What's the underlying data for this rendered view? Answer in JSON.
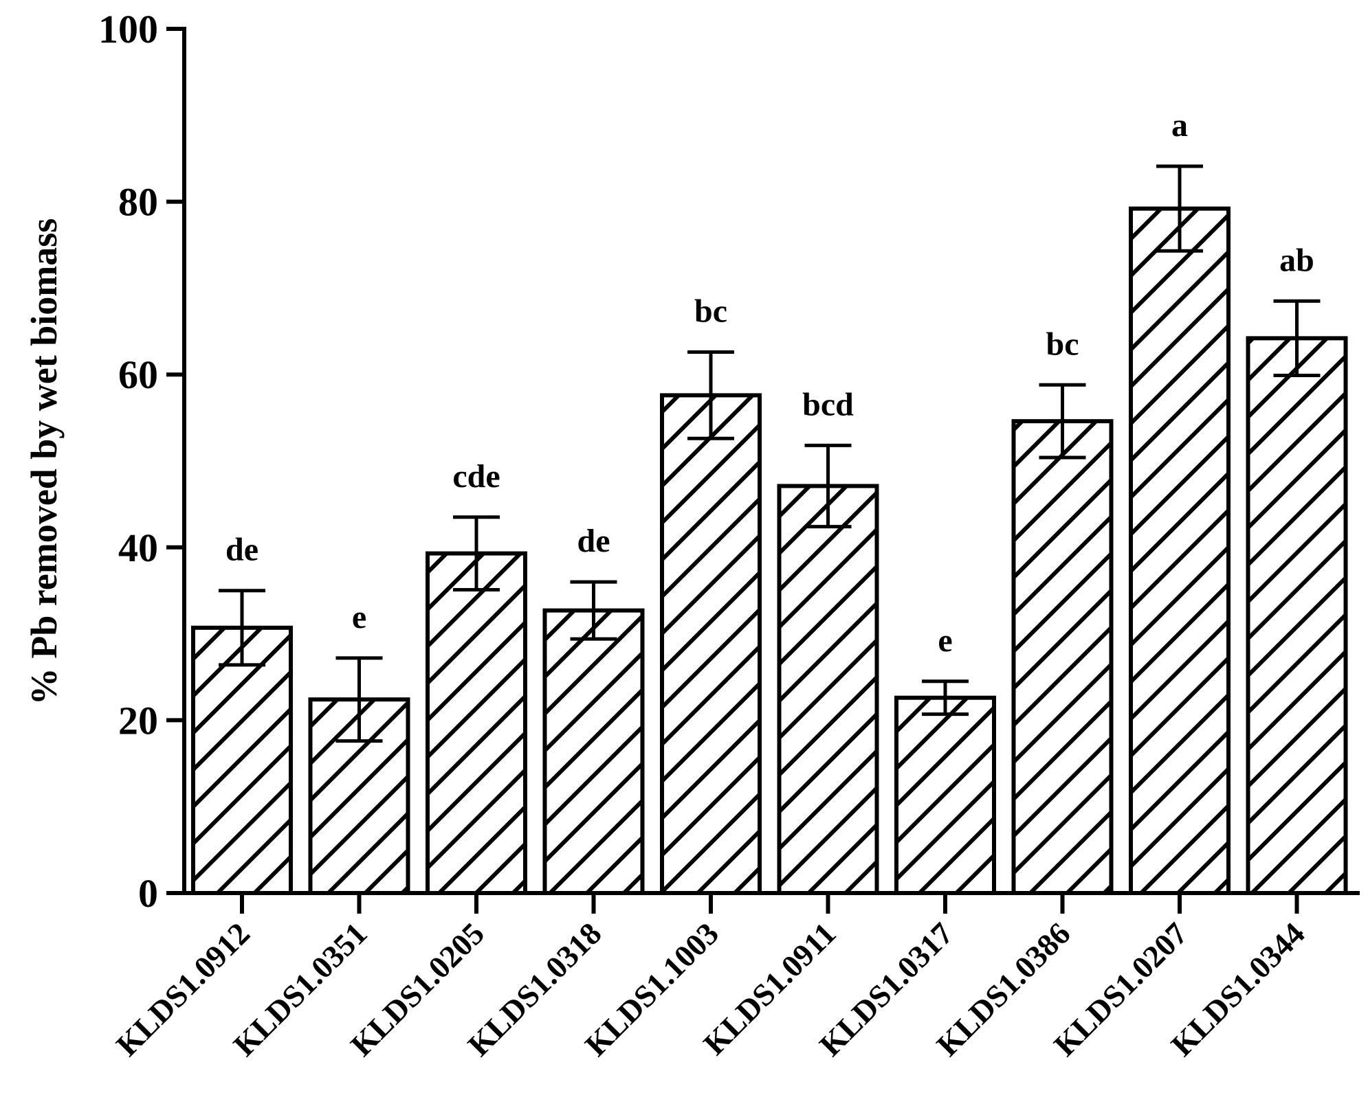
{
  "chart_data": {
    "type": "bar",
    "title": "",
    "xlabel": "",
    "ylabel": "% Pb removed by wet biomass",
    "ylim": [
      0,
      100
    ],
    "yticks": [
      0,
      20,
      40,
      60,
      80,
      100
    ],
    "grid": false,
    "bar_fill": "diagonal-hatch",
    "colors": {
      "stroke": "#000000",
      "fill": "#ffffff"
    },
    "categories": [
      "KLDS1.0912",
      "KLDS1.0351",
      "KLDS1.0205",
      "KLDS1.0318",
      "KLDS1.1003",
      "KLDS1.0911",
      "KLDS1.0317",
      "KLDS1.0386",
      "KLDS1.0207",
      "KLDS1.0344"
    ],
    "values": [
      30.7,
      22.4,
      39.3,
      32.7,
      57.6,
      47.1,
      22.6,
      54.6,
      79.2,
      64.2
    ],
    "errors": [
      4.3,
      4.8,
      4.2,
      3.3,
      5.0,
      4.7,
      1.9,
      4.2,
      4.9,
      4.3
    ],
    "significance": [
      "de",
      "e",
      "cde",
      "de",
      "bc",
      "bcd",
      "e",
      "bc",
      "a",
      "ab"
    ]
  }
}
